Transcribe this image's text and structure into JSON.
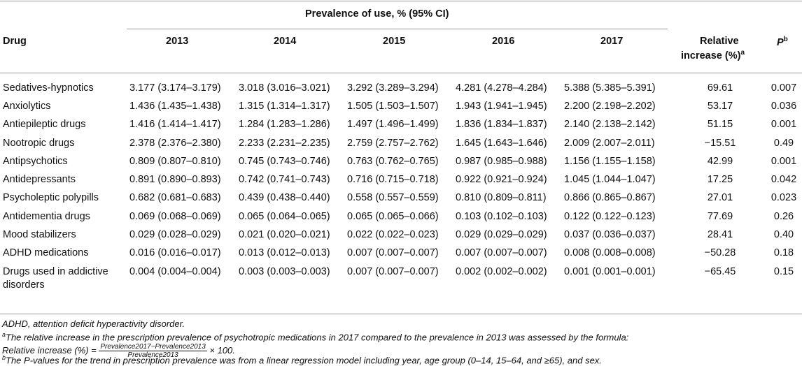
{
  "table": {
    "header": {
      "group_label": "Prevalence of use, % (95% CI)",
      "drug": "Drug",
      "years": [
        "2013",
        "2014",
        "2015",
        "2016",
        "2017"
      ],
      "relative_increase_line1": "Relative",
      "relative_increase_line2": "increase (%)",
      "relative_sup": "a",
      "p": "P",
      "p_sup": "b"
    },
    "rows": [
      {
        "drug": "Sedatives-hypnotics",
        "v2013": "3.177 (3.174–3.179)",
        "v2014": "3.018 (3.016–3.021)",
        "v2015": "3.292 (3.289–3.294)",
        "v2016": "4.281 (4.278–4.284)",
        "v2017": "5.388 (5.385–5.391)",
        "rel": "69.61",
        "p": "0.007"
      },
      {
        "drug": "Anxiolytics",
        "v2013": "1.436 (1.435–1.438)",
        "v2014": "1.315 (1.314–1.317)",
        "v2015": "1.505 (1.503–1.507)",
        "v2016": "1.943 (1.941–1.945)",
        "v2017": "2.200 (2.198–2.202)",
        "rel": "53.17",
        "p": "0.036"
      },
      {
        "drug": "Antiepileptic drugs",
        "v2013": "1.416 (1.414–1.417)",
        "v2014": "1.284 (1.283–1.286)",
        "v2015": "1.497 (1.496–1.499)",
        "v2016": "1.836 (1.834–1.837)",
        "v2017": "2.140 (2.138–2.142)",
        "rel": "51.15",
        "p": "0.001"
      },
      {
        "drug": "Nootropic drugs",
        "v2013": "2.378 (2.376–2.380)",
        "v2014": "2.233 (2.231–2.235)",
        "v2015": "2.759 (2.757–2.762)",
        "v2016": "1.645 (1.643–1.646)",
        "v2017": "2.009 (2.007–2.011)",
        "rel": "−15.51",
        "p": "0.49"
      },
      {
        "drug": "Antipsychotics",
        "v2013": "0.809 (0.807–0.810)",
        "v2014": "0.745 (0.743–0.746)",
        "v2015": "0.763 (0.762–0.765)",
        "v2016": "0.987 (0.985–0.988)",
        "v2017": "1.156 (1.155–1.158)",
        "rel": "42.99",
        "p": "0.001"
      },
      {
        "drug": "Antidepressants",
        "v2013": "0.891 (0.890–0.893)",
        "v2014": "0.742 (0.741–0.743)",
        "v2015": "0.716 (0.715–0.718)",
        "v2016": "0.922 (0.921–0.924)",
        "v2017": "1.045 (1.044–1.047)",
        "rel": "17.25",
        "p": "0.042"
      },
      {
        "drug": "Psycholeptic polypills",
        "v2013": "0.682 (0.681–0.683)",
        "v2014": "0.439 (0.438–0.440)",
        "v2015": "0.558 (0.557–0.559)",
        "v2016": "0.810 (0.809–0.811)",
        "v2017": "0.866 (0.865–0.867)",
        "rel": "27.01",
        "p": "0.023"
      },
      {
        "drug": "Antidementia drugs",
        "v2013": "0.069 (0.068–0.069)",
        "v2014": "0.065 (0.064–0.065)",
        "v2015": "0.065 (0.065–0.066)",
        "v2016": "0.103 (0.102–0.103)",
        "v2017": "0.122 (0.122–0.123)",
        "rel": "77.69",
        "p": "0.26"
      },
      {
        "drug": "Mood stabilizers",
        "v2013": "0.029 (0.028–0.029)",
        "v2014": "0.021 (0.020–0.021)",
        "v2015": "0.022 (0.022–0.023)",
        "v2016": "0.029 (0.029–0.029)",
        "v2017": "0.037 (0.036–0.037)",
        "rel": "28.41",
        "p": "0.40"
      },
      {
        "drug": "ADHD medications",
        "v2013": "0.016 (0.016–0.017)",
        "v2014": "0.013 (0.012–0.013)",
        "v2015": "0.007 (0.007–0.007)",
        "v2016": "0.007 (0.007–0.007)",
        "v2017": "0.008 (0.008–0.008)",
        "rel": "−50.28",
        "p": "0.18"
      },
      {
        "drug": "Drugs used in addictive",
        "drug2": "disorders",
        "v2013": "0.004 (0.004–0.004)",
        "v2014": "0.003 (0.003–0.003)",
        "v2015": "0.007 (0.007–0.007)",
        "v2016": "0.002 (0.002–0.002)",
        "v2017": "0.001 (0.001–0.001)",
        "rel": "−65.45",
        "p": "0.15"
      }
    ]
  },
  "footnotes": {
    "abbrev": "ADHD, attention deficit hyperactivity disorder.",
    "a_sup": "a",
    "a_text": "The relative increase in the prescription prevalence of psychotropic medications in 2017 compared to the prevalence in 2013 was assessed by the formula:",
    "a_formula_lhs": "Relative increase (%) =",
    "a_formula_num": "Prevalence2017−Prevalence2013",
    "a_formula_den": "Prevalence2013",
    "a_formula_rhs": "× 100.",
    "b_sup": "b",
    "b_text": "The P-values for the trend in prescription prevalence was from a linear regression model including year, age group (0–14, 15–64, and ≥65), and sex."
  }
}
